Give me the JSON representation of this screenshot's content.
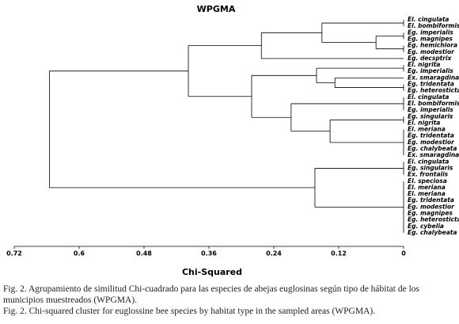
{
  "chart_data": {
    "type": "dendrogram",
    "title": "WPGMA",
    "x_label": "Chi-Squared",
    "xlim": [
      0.72,
      0
    ],
    "xticks": [
      0.72,
      0.6,
      0.48,
      0.36,
      0.24,
      0.12,
      0
    ],
    "color": "#000000",
    "tree": {
      "height": 0.655,
      "children": [
        {
          "height": 0.398,
          "children": [
            {
              "height": 0.263,
              "children": [
                {
                  "height": 0.151,
                  "children": [
                    {
                      "height": 0,
                      "children": [
                        "El. cingulata",
                        "El. bombiformis"
                      ]
                    },
                    {
                      "height": 0.051,
                      "children": [
                        {
                          "height": 0,
                          "children": [
                            "Eg. imperialis",
                            "Eg. magnipes"
                          ]
                        },
                        {
                          "height": 0,
                          "children": [
                            "Eg. hemichlora",
                            "Eg. modestior"
                          ]
                        }
                      ]
                    }
                  ]
                },
                "Eg. decsptrix"
              ]
            },
            {
              "height": 0.281,
              "children": [
                {
                  "height": 0.161,
                  "children": [
                    {
                      "height": 0,
                      "children": [
                        "El. nigrita",
                        "Eg. imperialis"
                      ]
                    },
                    {
                      "height": 0.127,
                      "children": [
                        "Ex. smaragdina",
                        {
                          "height": 0,
                          "children": [
                            "Eg. tridentata",
                            "Eg. heterosticta"
                          ]
                        }
                      ]
                    }
                  ]
                },
                {
                  "height": 0.208,
                  "children": [
                    {
                      "height": 0,
                      "children": [
                        "El. cingulata",
                        "El. bombiformis",
                        "Eg. imperialis"
                      ]
                    },
                    {
                      "height": 0.136,
                      "children": [
                        {
                          "height": 0,
                          "children": [
                            "Eg. singularis",
                            "El. nigrita"
                          ]
                        },
                        {
                          "height": 0,
                          "children": [
                            "El. meriana",
                            "Eg. tridentata",
                            "Eg. modestior",
                            "Eg. chalybeata",
                            "Ex. smaragdina"
                          ]
                        }
                      ]
                    }
                  ]
                }
              ]
            }
          ]
        },
        {
          "height": 0.164,
          "children": [
            {
              "height": 0,
              "children": [
                "El. cingulata",
                "Eg. singularis",
                "Ex. frontalis"
              ]
            },
            {
              "height": 0,
              "children": [
                "El. speciosa",
                "El. meriana",
                "El. meriana",
                "Eg. tridentata",
                "Eg. modestior",
                "Eg. magnipes",
                "Eg. heterosticta",
                "Eg. cybelia",
                "Eg. chalybeata"
              ]
            }
          ]
        }
      ]
    }
  },
  "captions": [
    "Fig. 2. Agrupamiento de similitud Chi-cuadrado para las especies de abejas euglosinas según tipo de hábitat de los municipios muestreados (WPGMA).",
    "Fig. 2. Chi-squared cluster for euglossine bee species by habitat type in the sampled areas (WPGMA)."
  ]
}
